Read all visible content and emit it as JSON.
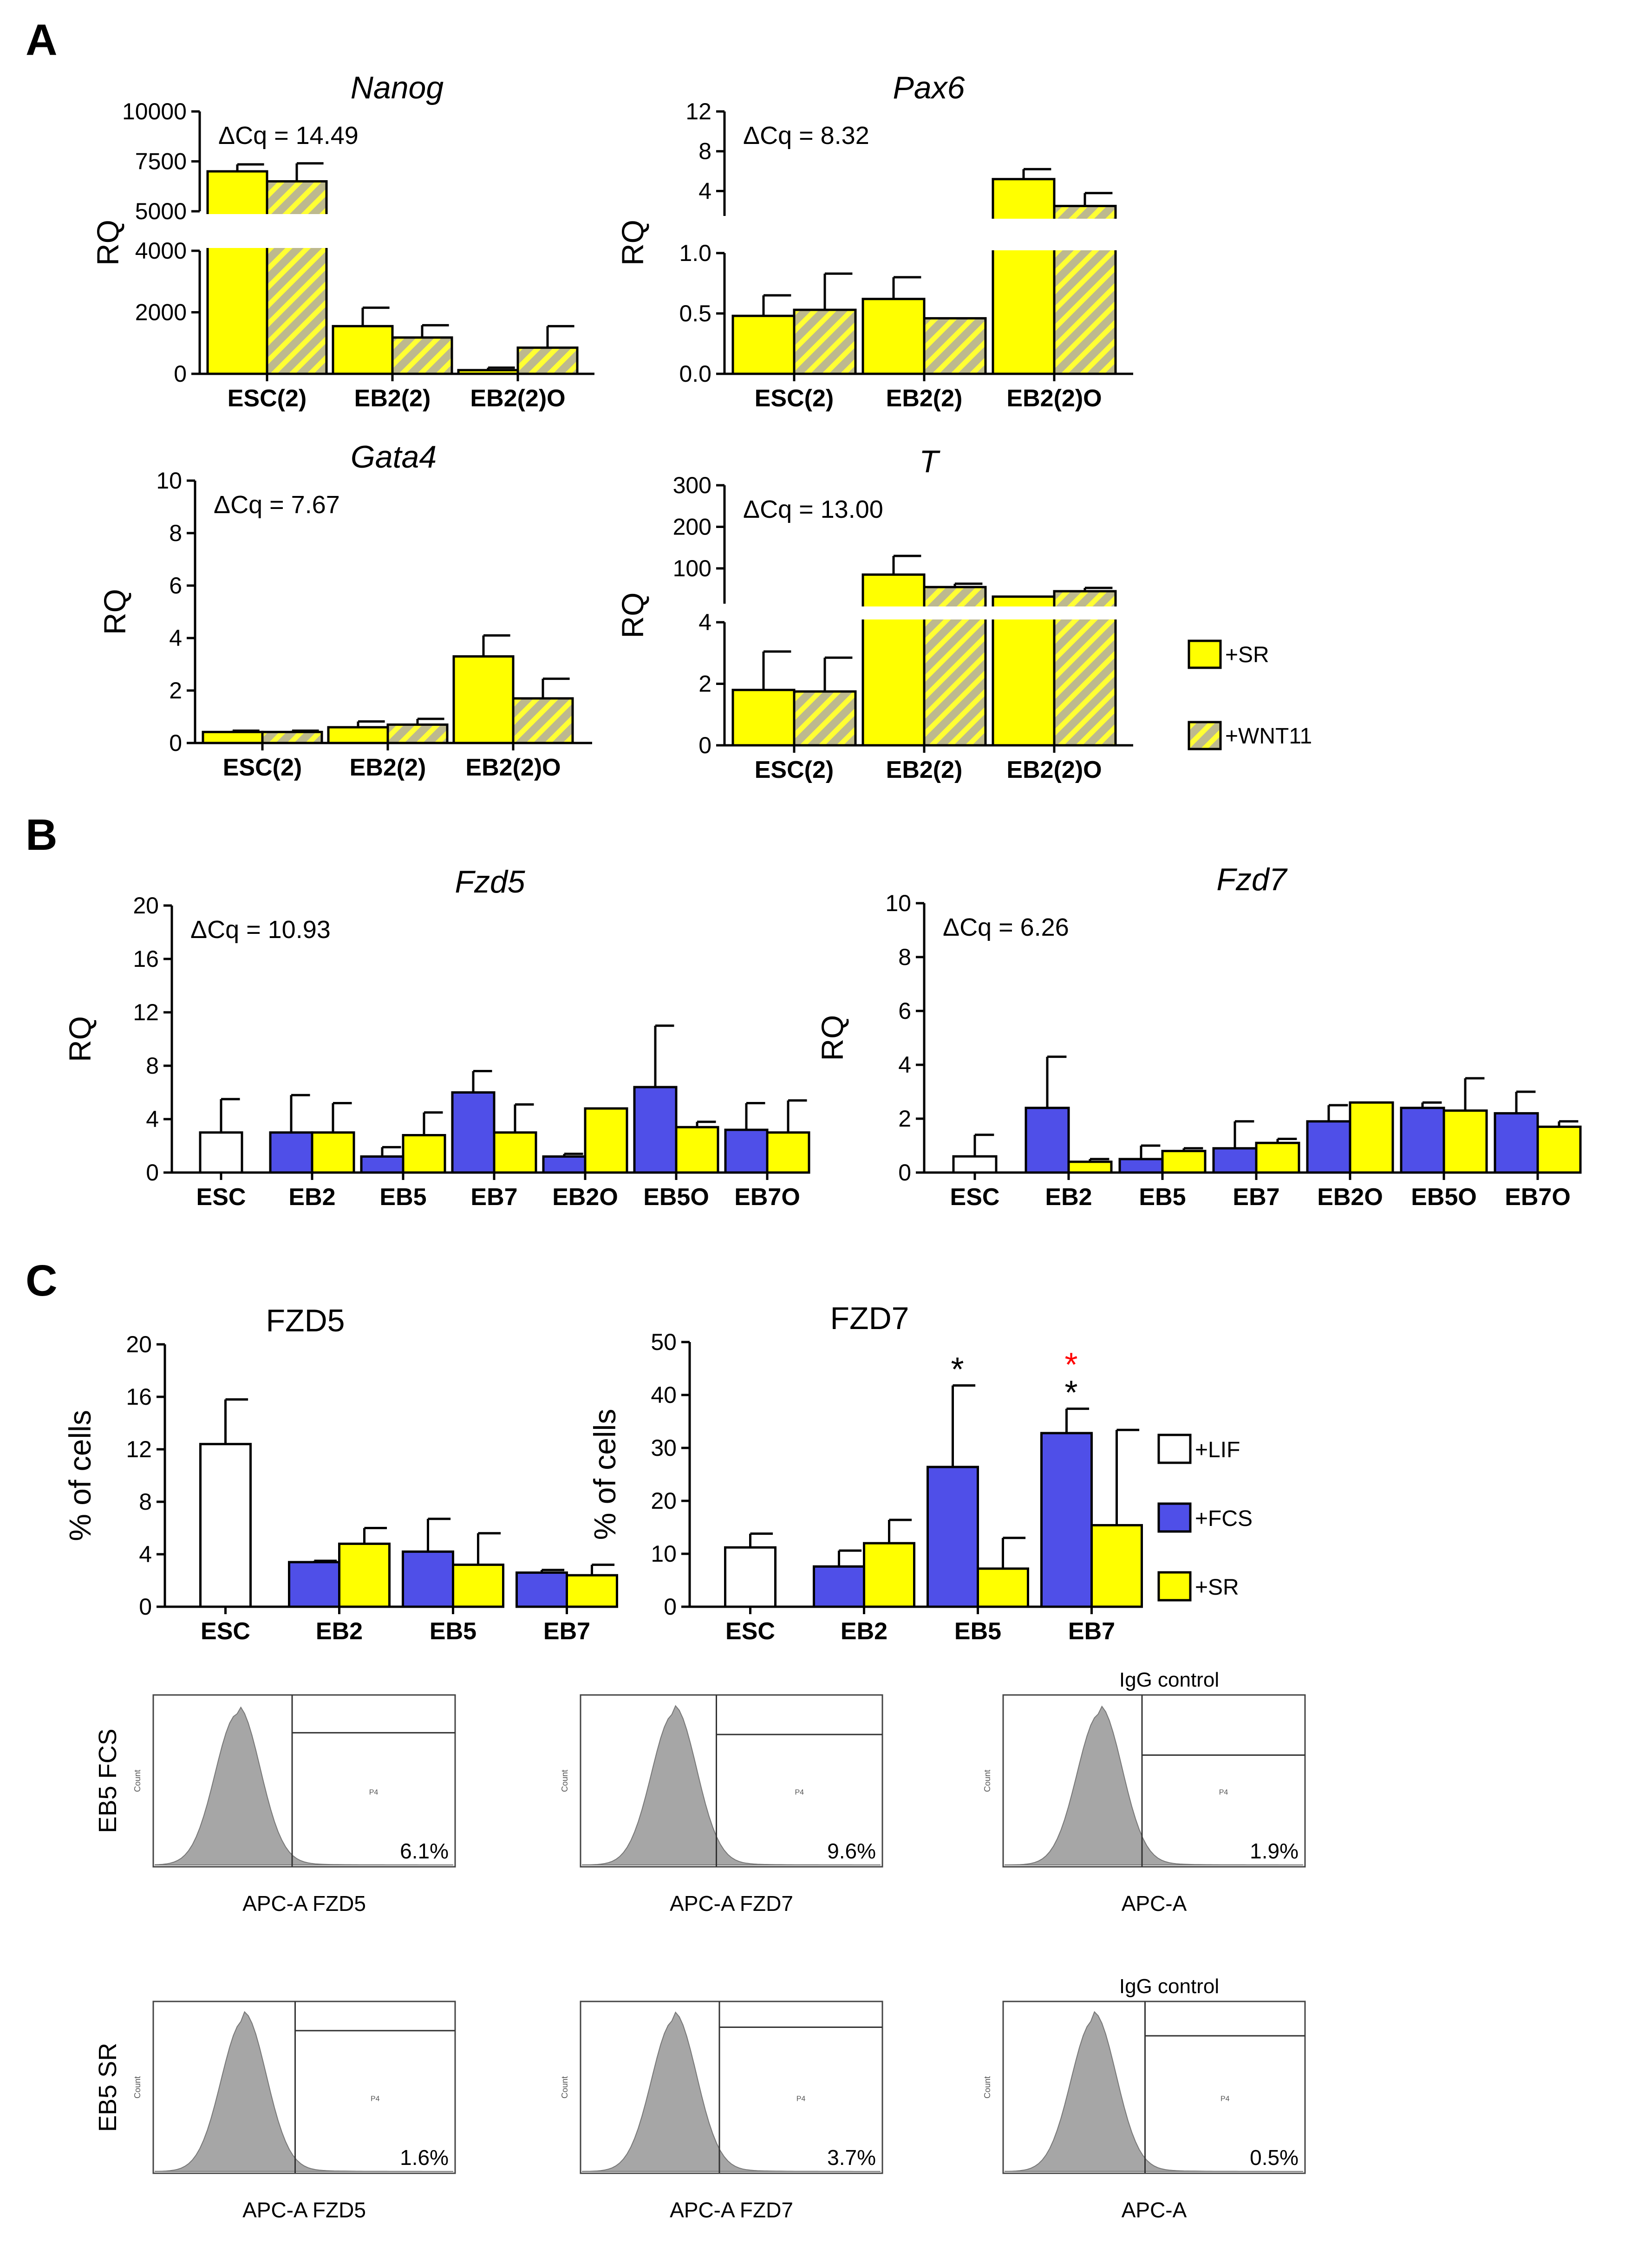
{
  "panel_letters": [
    "A",
    "B",
    "C"
  ],
  "colors": {
    "yellow": "#ffff00",
    "blue": "#4f4fe8",
    "white": "#ffffff",
    "hatch_base": "#bdb98e",
    "hatch_line": "#ffff33",
    "histogram": "#a6a6a6",
    "red_star": "#ff0000"
  },
  "legend_A": [
    "+SR",
    "+WNT11"
  ],
  "legend_C": [
    "+LIF",
    "+FCS",
    "+SR"
  ],
  "chart_data": [
    {
      "id": "nanog",
      "panel": "A",
      "type": "bar",
      "title": "Nanog",
      "title_italic": true,
      "ylabel": "RQ",
      "delta_cq": "ΔCq = 14.49",
      "categories": [
        "ESC(2)",
        "EB2(2)",
        "EB2(2)O"
      ],
      "series": [
        {
          "name": "+SR",
          "style": "yellow",
          "values": [
            7000,
            1550,
            120
          ],
          "errors": [
            350,
            600,
            80
          ]
        },
        {
          "name": "+WNT11",
          "style": "hatch",
          "values": [
            6500,
            1180,
            850
          ],
          "errors": [
            900,
            400,
            700
          ]
        }
      ],
      "broken_axis": {
        "lower_range": [
          0,
          4000
        ],
        "upper_range": [
          5000,
          10000
        ],
        "lower_ticks": [
          "0",
          "2000",
          "4000"
        ],
        "upper_ticks": [
          "5000",
          "7500",
          "10000"
        ]
      }
    },
    {
      "id": "pax6",
      "panel": "A",
      "type": "bar",
      "title": "Pax6",
      "title_italic": true,
      "ylabel": "RQ",
      "delta_cq": "ΔCq = 8.32",
      "categories": [
        "ESC(2)",
        "EB2(2)",
        "EB2(2)O"
      ],
      "series": [
        {
          "name": "+SR",
          "style": "yellow",
          "values": [
            0.48,
            0.62,
            5.2
          ],
          "errors": [
            0.17,
            0.18,
            1.0
          ]
        },
        {
          "name": "+WNT11",
          "style": "hatch",
          "values": [
            0.53,
            0.46,
            2.5
          ],
          "errors": [
            0.3,
            0,
            1.3
          ]
        }
      ],
      "broken_axis": {
        "lower_range": [
          0,
          1.0
        ],
        "upper_range": [
          1.5,
          12
        ],
        "lower_ticks": [
          "0.0",
          "0.5",
          "1.0"
        ],
        "upper_ticks": [
          "4",
          "8",
          "12"
        ]
      }
    },
    {
      "id": "gata4",
      "panel": "A",
      "type": "bar",
      "title": "Gata4",
      "title_italic": true,
      "ylabel": "RQ",
      "delta_cq": "ΔCq = 7.67",
      "categories": [
        "ESC(2)",
        "EB2(2)",
        "EB2(2)O"
      ],
      "series": [
        {
          "name": "+SR",
          "style": "yellow",
          "values": [
            0.42,
            0.6,
            3.3
          ],
          "errors": [
            0.05,
            0.22,
            0.8
          ]
        },
        {
          "name": "+WNT11",
          "style": "hatch",
          "values": [
            0.42,
            0.7,
            1.7
          ],
          "errors": [
            0.05,
            0.22,
            0.75
          ]
        }
      ],
      "ylim": [
        0,
        10
      ],
      "yticks": [
        "0",
        "2",
        "4",
        "6",
        "8",
        "10"
      ]
    },
    {
      "id": "t",
      "panel": "A",
      "type": "bar",
      "title": "T",
      "title_italic": true,
      "ylabel": "RQ",
      "delta_cq": "ΔCq = 13.00",
      "categories": [
        "ESC(2)",
        "EB2(2)",
        "EB2(2)O"
      ],
      "series": [
        {
          "name": "+SR",
          "style": "yellow",
          "values": [
            1.8,
            85,
            32
          ],
          "errors": [
            1.25,
            45,
            0
          ]
        },
        {
          "name": "+WNT11",
          "style": "hatch",
          "values": [
            1.75,
            55,
            45
          ],
          "errors": [
            1.1,
            8,
            8
          ]
        }
      ],
      "broken_axis": {
        "lower_range": [
          0,
          4
        ],
        "upper_range": [
          15,
          300
        ],
        "lower_ticks": [
          "0",
          "2",
          "4"
        ],
        "upper_ticks": [
          "100",
          "200",
          "300"
        ]
      }
    },
    {
      "id": "fzd5_rq",
      "panel": "B",
      "type": "bar",
      "title": "Fzd5",
      "title_italic": true,
      "ylabel": "RQ",
      "delta_cq": "ΔCq = 10.93",
      "categories": [
        "ESC",
        "EB2",
        "EB5",
        "EB7",
        "EB2O",
        "EB5O",
        "EB7O"
      ],
      "groups": [
        {
          "category": "ESC",
          "bars": [
            {
              "style": "white",
              "value": 3.0,
              "error": 2.5
            }
          ]
        },
        {
          "category": "EB2",
          "bars": [
            {
              "style": "blue",
              "value": 3.0,
              "error": 2.8
            },
            {
              "style": "yellow",
              "value": 3.0,
              "error": 2.2
            }
          ]
        },
        {
          "category": "EB5",
          "bars": [
            {
              "style": "blue",
              "value": 1.2,
              "error": 0.7
            },
            {
              "style": "yellow",
              "value": 2.8,
              "error": 1.7
            }
          ]
        },
        {
          "category": "EB7",
          "bars": [
            {
              "style": "blue",
              "value": 6.0,
              "error": 1.6
            },
            {
              "style": "yellow",
              "value": 3.0,
              "error": 2.1
            }
          ]
        },
        {
          "category": "EB2O",
          "bars": [
            {
              "style": "blue",
              "value": 1.2,
              "error": 0.2
            },
            {
              "style": "yellow",
              "value": 4.8,
              "error": 0
            }
          ]
        },
        {
          "category": "EB5O",
          "bars": [
            {
              "style": "blue",
              "value": 6.4,
              "error": 4.6
            },
            {
              "style": "yellow",
              "value": 3.4,
              "error": 0.4
            }
          ]
        },
        {
          "category": "EB7O",
          "bars": [
            {
              "style": "blue",
              "value": 3.2,
              "error": 2.0
            },
            {
              "style": "yellow",
              "value": 3.0,
              "error": 2.4
            }
          ]
        }
      ],
      "ylim": [
        0,
        20
      ],
      "yticks": [
        "0",
        "4",
        "8",
        "12",
        "16",
        "20"
      ]
    },
    {
      "id": "fzd7_rq",
      "panel": "B",
      "type": "bar",
      "title": "Fzd7",
      "title_italic": true,
      "ylabel": "RQ",
      "delta_cq": "ΔCq = 6.26",
      "categories": [
        "ESC",
        "EB2",
        "EB5",
        "EB7",
        "EB2O",
        "EB5O",
        "EB7O"
      ],
      "groups": [
        {
          "category": "ESC",
          "bars": [
            {
              "style": "white",
              "value": 0.6,
              "error": 0.8
            }
          ]
        },
        {
          "category": "EB2",
          "bars": [
            {
              "style": "blue",
              "value": 2.4,
              "error": 1.9
            },
            {
              "style": "yellow",
              "value": 0.4,
              "error": 0.1
            }
          ]
        },
        {
          "category": "EB5",
          "bars": [
            {
              "style": "blue",
              "value": 0.5,
              "error": 0.5
            },
            {
              "style": "yellow",
              "value": 0.8,
              "error": 0.1
            }
          ]
        },
        {
          "category": "EB7",
          "bars": [
            {
              "style": "blue",
              "value": 0.9,
              "error": 1.0
            },
            {
              "style": "yellow",
              "value": 1.1,
              "error": 0.15
            }
          ]
        },
        {
          "category": "EB2O",
          "bars": [
            {
              "style": "blue",
              "value": 1.9,
              "error": 0.6
            },
            {
              "style": "yellow",
              "value": 2.6,
              "error": 0
            }
          ]
        },
        {
          "category": "EB5O",
          "bars": [
            {
              "style": "blue",
              "value": 2.4,
              "error": 0.2
            },
            {
              "style": "yellow",
              "value": 2.3,
              "error": 1.2
            }
          ]
        },
        {
          "category": "EB7O",
          "bars": [
            {
              "style": "blue",
              "value": 2.2,
              "error": 0.8
            },
            {
              "style": "yellow",
              "value": 1.7,
              "error": 0.2
            }
          ]
        }
      ],
      "ylim": [
        0,
        10
      ],
      "yticks": [
        "0",
        "2",
        "4",
        "6",
        "8",
        "10"
      ]
    },
    {
      "id": "fzd5_pct",
      "panel": "C",
      "type": "bar",
      "title": "FZD5",
      "title_italic": false,
      "ylabel": "% of cells",
      "categories": [
        "ESC",
        "EB2",
        "EB5",
        "EB7"
      ],
      "groups": [
        {
          "category": "ESC",
          "bars": [
            {
              "style": "white",
              "value": 12.4,
              "error": 3.4
            }
          ]
        },
        {
          "category": "EB2",
          "bars": [
            {
              "style": "blue",
              "value": 3.4,
              "error": 0.1
            },
            {
              "style": "yellow",
              "value": 4.8,
              "error": 1.2
            }
          ]
        },
        {
          "category": "EB5",
          "bars": [
            {
              "style": "blue",
              "value": 4.2,
              "error": 2.5
            },
            {
              "style": "yellow",
              "value": 3.2,
              "error": 2.4
            }
          ]
        },
        {
          "category": "EB7",
          "bars": [
            {
              "style": "blue",
              "value": 2.6,
              "error": 0.2
            },
            {
              "style": "yellow",
              "value": 2.4,
              "error": 0.8
            }
          ]
        }
      ],
      "ylim": [
        0,
        20
      ],
      "yticks": [
        "0",
        "4",
        "8",
        "12",
        "16",
        "20"
      ]
    },
    {
      "id": "fzd7_pct",
      "panel": "C",
      "type": "bar",
      "title": "FZD7",
      "title_italic": false,
      "ylabel": "% of cells",
      "categories": [
        "ESC",
        "EB2",
        "EB5",
        "EB7"
      ],
      "groups": [
        {
          "category": "ESC",
          "bars": [
            {
              "style": "white",
              "value": 11.2,
              "error": 2.6
            }
          ]
        },
        {
          "category": "EB2",
          "bars": [
            {
              "style": "blue",
              "value": 7.6,
              "error": 3.0
            },
            {
              "style": "yellow",
              "value": 12.0,
              "error": 4.4
            }
          ]
        },
        {
          "category": "EB5",
          "bars": [
            {
              "style": "blue",
              "value": 26.4,
              "error": 15.4
            },
            {
              "style": "yellow",
              "value": 7.2,
              "error": 5.8
            }
          ]
        },
        {
          "category": "EB7",
          "bars": [
            {
              "style": "blue",
              "value": 32.8,
              "error": 4.6
            },
            {
              "style": "yellow",
              "value": 15.4,
              "error": 18.0
            }
          ]
        }
      ],
      "ylim": [
        0,
        50
      ],
      "yticks": [
        "0",
        "10",
        "20",
        "30",
        "40",
        "50"
      ],
      "annotations": [
        {
          "category_index": 2,
          "bar_index": 0,
          "text": "*",
          "color": "black"
        },
        {
          "category_index": 3,
          "bar_index": 0,
          "text": "*",
          "color": "black"
        },
        {
          "category_index": 3,
          "bar_index": 0,
          "text": "*",
          "color": "red"
        }
      ]
    }
  ],
  "flow": {
    "row_labels": [
      "EB5 FCS",
      "EB5 SR"
    ],
    "rows": [
      [
        {
          "xlabel": "APC-A FZD5",
          "percent": "6.1%",
          "header": ""
        },
        {
          "xlabel": "APC-A FZD7",
          "percent": "9.6%",
          "header": ""
        },
        {
          "xlabel": "APC-A",
          "percent": "1.9%",
          "header": "IgG control"
        }
      ],
      [
        {
          "xlabel": "APC-A FZD5",
          "percent": "1.6%",
          "header": ""
        },
        {
          "xlabel": "APC-A FZD7",
          "percent": "3.7%",
          "header": ""
        },
        {
          "xlabel": "APC-A",
          "percent": "0.5%",
          "header": "IgG control"
        }
      ]
    ],
    "gate_label": "P4",
    "count_label": "Count"
  }
}
